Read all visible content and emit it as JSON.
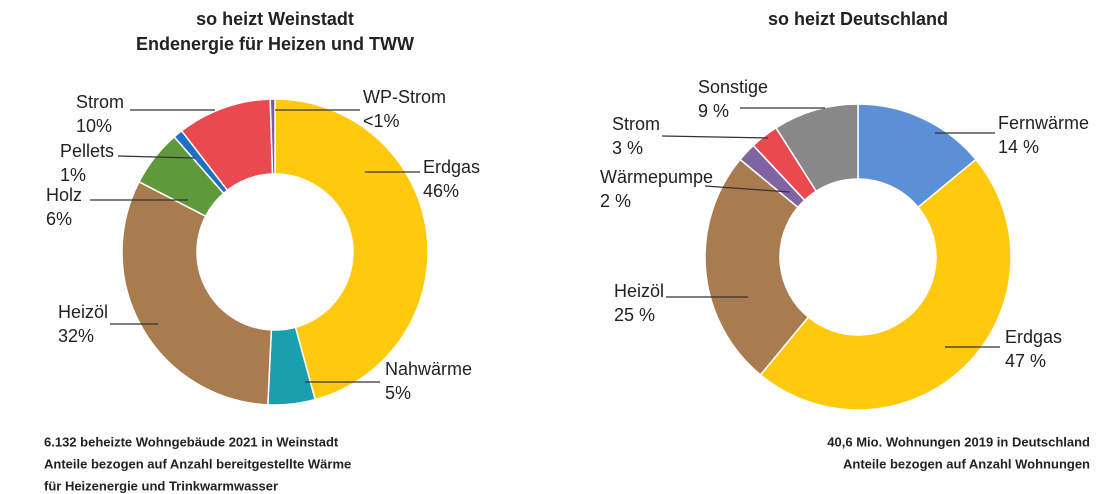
{
  "chart_data": [
    {
      "type": "donut",
      "title": "so heizt Weinstadt",
      "subtitle": "Endenergie für Heizen und TWW",
      "categories": [
        "Erdgas",
        "Nahwärme",
        "Heizöl",
        "Holz",
        "Pellets",
        "Strom",
        "WP-Strom"
      ],
      "values": [
        46,
        5,
        32,
        6,
        1,
        10,
        0.5
      ],
      "value_labels": [
        "46%",
        "5%",
        "32%",
        "6%",
        "1%",
        "10%",
        "<1%"
      ],
      "colors": [
        "#ffc90e",
        "#1a9fae",
        "#a97c50",
        "#5f9a3a",
        "#1f6fc5",
        "#e84a4f",
        "#7a5ca0"
      ],
      "notes": [
        "6.132 beheizte Wohngebäude 2021 in Weinstadt",
        "Anteile bezogen auf Anzahl bereitgestellte Wärme",
        "für Heizenergie und Trinkwarmwasser"
      ]
    },
    {
      "type": "donut",
      "title": "so heizt Deutschland",
      "categories": [
        "Fernwärme",
        "Erdgas",
        "Heizöl",
        "Wärmepumpe",
        "Strom",
        "Sonstige"
      ],
      "values": [
        14,
        47,
        25,
        2,
        3,
        9
      ],
      "value_labels": [
        "14 %",
        "47 %",
        "25 %",
        "2 %",
        "3 %",
        "9 %"
      ],
      "colors": [
        "#5b8fd6",
        "#ffc90e",
        "#a97c50",
        "#8064a2",
        "#e84a4f",
        "#888888"
      ],
      "notes": [
        "40,6 Mio. Wohnungen 2019 in Deutschland",
        "Anteile bezogen auf Anzahl Wohnungen"
      ]
    }
  ]
}
